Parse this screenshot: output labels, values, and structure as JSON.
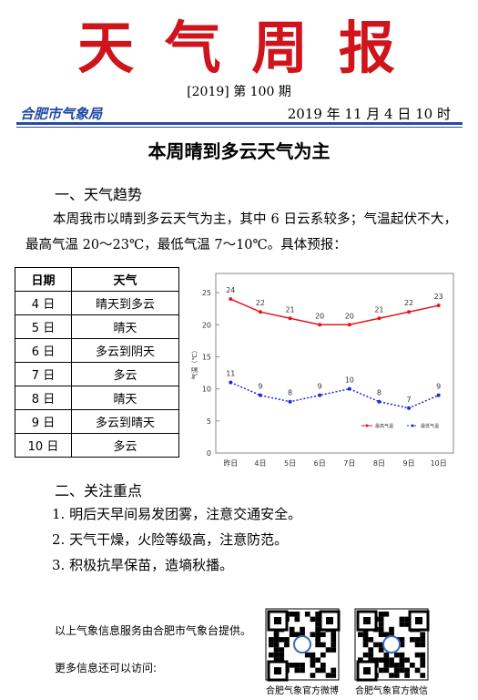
{
  "header": {
    "title": "天 气 周 报",
    "issue": "[2019] 第 100 期",
    "org": "合肥市气象局",
    "date": "2019 年 11 月 4 日 10 时"
  },
  "headline": "本周晴到多云天气为主",
  "trend": {
    "heading": "一、天气趋势",
    "text": "本周我市以晴到多云天气为主，其中 6 日云系较多；气温起伏不大，最高气温 20～23℃，最低气温 7～10℃。具体预报："
  },
  "table": {
    "columns": [
      "日期",
      "天气"
    ],
    "rows": [
      [
        "4 日",
        "晴天到多云"
      ],
      [
        "5 日",
        "晴天"
      ],
      [
        "6 日",
        "多云到阴天"
      ],
      [
        "7 日",
        "多云"
      ],
      [
        "8 日",
        "晴天"
      ],
      [
        "9 日",
        "多云到晴天"
      ],
      [
        "10 日",
        "多云"
      ]
    ]
  },
  "chart_data": {
    "type": "line",
    "y_label": "气温（℃）",
    "categories": [
      "昨日",
      "4日",
      "5日",
      "6日",
      "7日",
      "8日",
      "9日",
      "10日"
    ],
    "series": [
      {
        "name": "最高气温",
        "color": "#e8141c",
        "values": [
          24,
          22,
          21,
          20,
          20,
          21,
          22,
          23
        ]
      },
      {
        "name": "最低气温",
        "color": "#1a2ad8",
        "values": [
          11,
          9,
          8,
          9,
          10,
          8,
          7,
          9
        ]
      }
    ],
    "ylim": [
      0,
      28
    ],
    "yticks": [
      0,
      5,
      10,
      15,
      20,
      25
    ],
    "legend": "lower right",
    "grid": false
  },
  "focus": {
    "heading": "二、关注重点",
    "items": [
      "1. 明后天早间易发团雾，注意交通安全。",
      "2. 天气干燥，火险等级高，注意防范。",
      "3. 积极抗旱保苗，造墒秋播。"
    ]
  },
  "footer": {
    "provider": "以上气象信息服务由合肥市气象台提供。",
    "more": "更多信息还可以访问:",
    "qr": [
      "合肥气象官方微博",
      "合肥气象官方微信"
    ]
  }
}
